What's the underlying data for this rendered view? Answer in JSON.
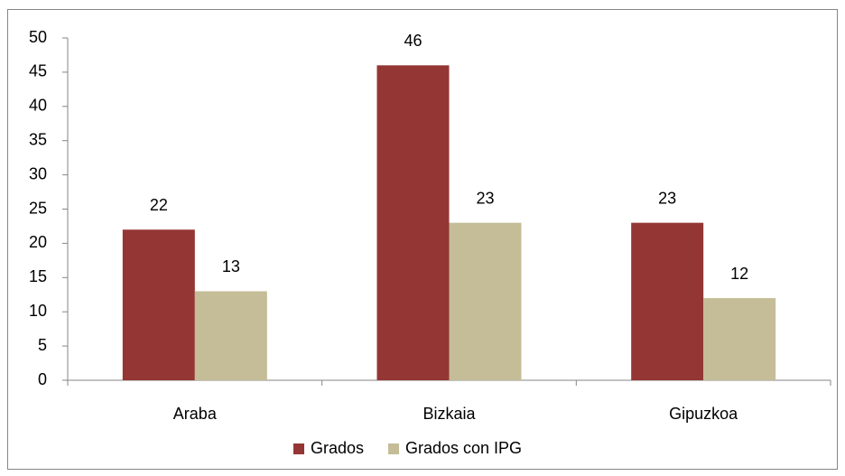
{
  "chart_data": {
    "type": "bar",
    "categories": [
      "Araba",
      "Bizkaia",
      "Gipuzkoa"
    ],
    "series": [
      {
        "name": "Grados",
        "color": "#943634",
        "values": [
          22,
          46,
          23
        ]
      },
      {
        "name": "Grados con IPG",
        "color": "#c4bd97",
        "values": [
          13,
          23,
          12
        ]
      }
    ],
    "ylim": [
      0,
      50
    ],
    "yticks": [
      0,
      5,
      10,
      15,
      20,
      25,
      30,
      35,
      40,
      45,
      50
    ],
    "grid": false,
    "legend": "bottom",
    "data_labels": true
  }
}
